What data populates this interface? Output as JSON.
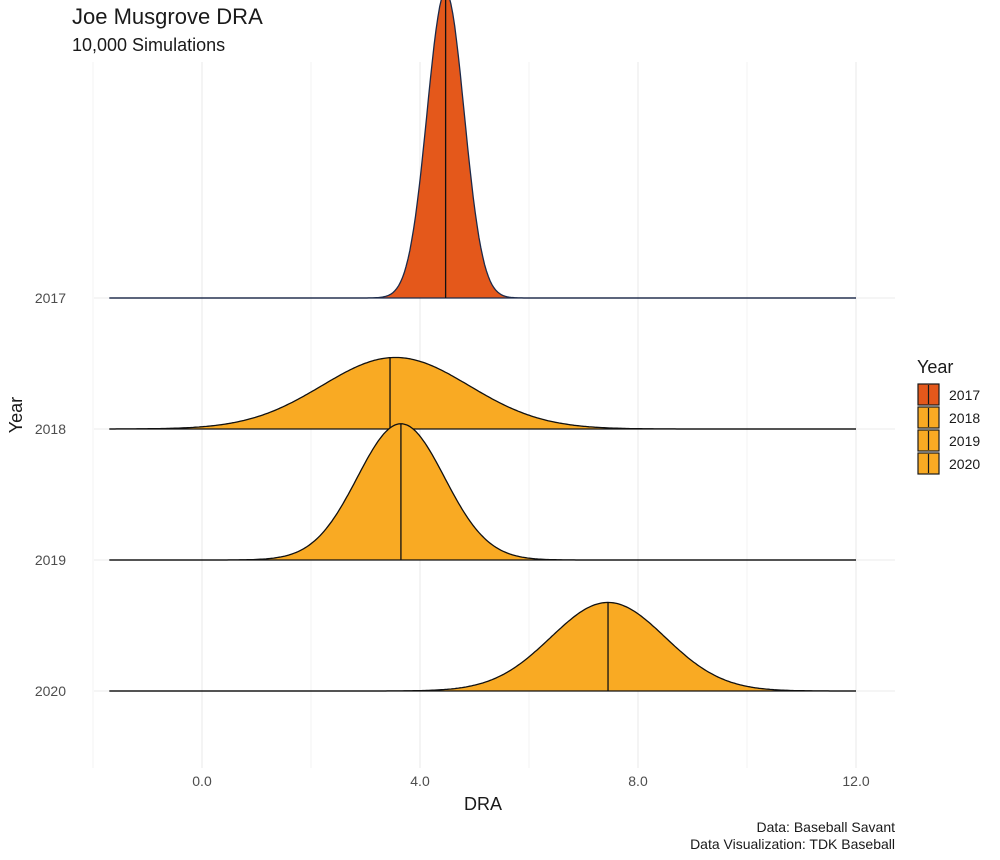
{
  "chart_data": {
    "type": "area",
    "title": "Joe Musgrove DRA",
    "subtitle": "10,000 Simulations",
    "xlabel": "DRA",
    "ylabel": "Year",
    "xlim": [
      -2.0,
      12.6
    ],
    "x_ticks": [
      "0.0",
      "4.0",
      "8.0",
      "12.0"
    ],
    "x_tick_values": [
      0,
      4,
      8,
      12
    ],
    "grid": true,
    "legend_title": "Year",
    "legend_position": "right",
    "series": [
      {
        "name": "2017",
        "color": "#E4581B",
        "median": 4.47,
        "mean": 4.47,
        "sd": 0.34,
        "peak": 1.8,
        "x_range": [
          -1.7,
          12.0
        ]
      },
      {
        "name": "2018",
        "color": "#F9AA23",
        "median": 3.45,
        "mean": 3.55,
        "sd": 1.35,
        "peak": 0.42,
        "x_range": [
          -1.7,
          12.0
        ]
      },
      {
        "name": "2019",
        "color": "#F9AA23",
        "median": 3.65,
        "mean": 3.65,
        "sd": 0.8,
        "peak": 0.8,
        "x_range": [
          -1.7,
          12.0
        ]
      },
      {
        "name": "2020",
        "color": "#F9AA23",
        "median": 7.45,
        "mean": 7.45,
        "sd": 1.05,
        "peak": 0.52,
        "x_range": [
          -1.7,
          12.0
        ]
      }
    ]
  },
  "caption": {
    "line1": "Data: Baseball Savant",
    "line2": "Data Visualization: TDK Baseball"
  }
}
